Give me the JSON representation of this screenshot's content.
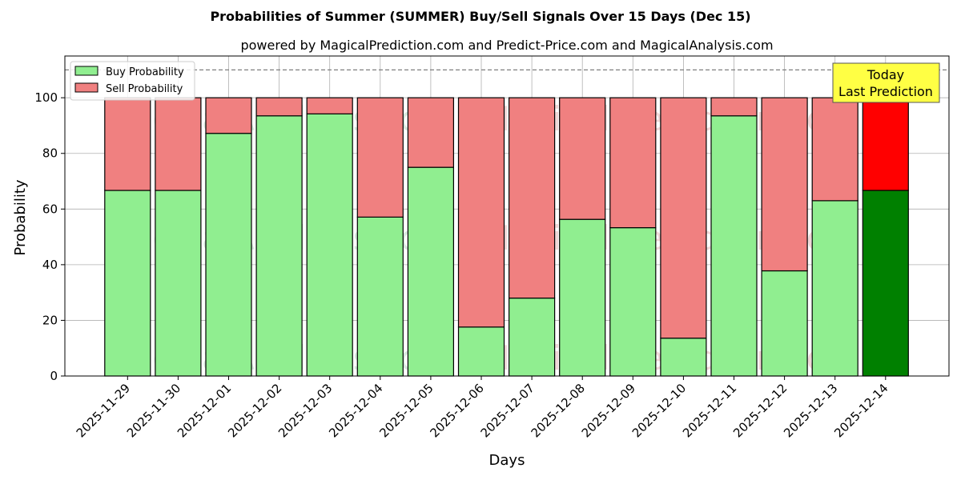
{
  "chart_data": {
    "type": "bar",
    "stacked": true,
    "title": "Probabilities of Summer (SUMMER) Buy/Sell Signals Over 15 Days (Dec 15)",
    "subtitle": "powered by MagicalPrediction.com and Predict-Price.com and MagicalAnalysis.com",
    "xlabel": "Days",
    "ylabel": "Probability",
    "ylim": [
      0,
      115
    ],
    "yticks": [
      0,
      20,
      40,
      60,
      80,
      100
    ],
    "reference_line": 110,
    "grid": true,
    "legend_position": "top-left",
    "categories": [
      "2025-11-29",
      "2025-11-30",
      "2025-12-01",
      "2025-12-02",
      "2025-12-03",
      "2025-12-04",
      "2025-12-05",
      "2025-12-06",
      "2025-12-07",
      "2025-12-08",
      "2025-12-09",
      "2025-12-10",
      "2025-12-11",
      "2025-12-12",
      "2025-12-13",
      "2025-12-14"
    ],
    "series": [
      {
        "name": "Buy Probability",
        "color": "#90ee90",
        "values": [
          66.7,
          66.7,
          87.2,
          93.5,
          94.2,
          57.1,
          75.0,
          17.6,
          28.0,
          56.3,
          53.3,
          13.6,
          93.5,
          37.8,
          63.0,
          66.7
        ]
      },
      {
        "name": "Sell Probability",
        "color": "#f08080",
        "values": [
          33.3,
          33.3,
          12.8,
          6.5,
          5.8,
          42.9,
          25.0,
          82.4,
          72.0,
          43.7,
          46.7,
          86.4,
          6.5,
          62.2,
          37.0,
          33.3
        ]
      }
    ],
    "highlight": {
      "index": 15,
      "buy_color": "#008000",
      "sell_color": "#ff0000"
    },
    "annotation": {
      "lines": [
        "Today",
        "Last Prediction"
      ],
      "background": "#ffff44"
    },
    "watermarks": [
      "MagicalAnalysis.com",
      "MagicalPrediction.com"
    ]
  }
}
